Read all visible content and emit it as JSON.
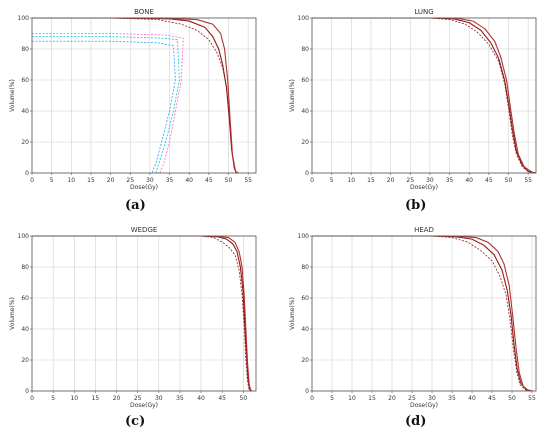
{
  "chart_data": [
    {
      "type": "line",
      "title": "BONE",
      "caption": "(a)",
      "xlabel": "Dose(Gy)",
      "ylabel": "Volume(%)",
      "xlim": [
        0,
        57
      ],
      "ylim": [
        0,
        100
      ],
      "xticks": [
        0,
        5,
        10,
        15,
        20,
        25,
        30,
        35,
        40,
        45,
        50,
        55
      ],
      "yticks": [
        0,
        20,
        40,
        60,
        80,
        100
      ],
      "grid": true,
      "series": [
        {
          "color": "#8b1a1a",
          "style": "solid",
          "points": [
            [
              0,
              100
            ],
            [
              20,
              100
            ],
            [
              35,
              99.5
            ],
            [
              40,
              98
            ],
            [
              44,
              94
            ],
            [
              46,
              88
            ],
            [
              47.5,
              80
            ],
            [
              48.5,
              70
            ],
            [
              49.5,
              55
            ],
            [
              50.2,
              35
            ],
            [
              50.8,
              15
            ],
            [
              51.5,
              3
            ],
            [
              52,
              0
            ]
          ]
        },
        {
          "color": "#8b1a1a",
          "style": "dashed",
          "points": [
            [
              0,
              100
            ],
            [
              20,
              100
            ],
            [
              32,
              99
            ],
            [
              38,
              96
            ],
            [
              42,
              92
            ],
            [
              45,
              86
            ],
            [
              47,
              78
            ],
            [
              48.5,
              68
            ],
            [
              49.5,
              55
            ],
            [
              50.3,
              35
            ],
            [
              51,
              12
            ],
            [
              51.8,
              1
            ],
            [
              52.5,
              0
            ]
          ]
        },
        {
          "color": "#b03030",
          "style": "solid",
          "points": [
            [
              0,
              100
            ],
            [
              20,
              100
            ],
            [
              35,
              99.8
            ],
            [
              42,
              99
            ],
            [
              46,
              96
            ],
            [
              48,
              90
            ],
            [
              49,
              80
            ],
            [
              49.8,
              60
            ],
            [
              50.4,
              35
            ],
            [
              51,
              12
            ],
            [
              51.8,
              1
            ],
            [
              52.5,
              0
            ]
          ]
        },
        {
          "color": "#00c8d8",
          "style": "dashed",
          "points": [
            [
              0,
              88
            ],
            [
              20,
              88
            ],
            [
              33,
              87
            ],
            [
              37,
              86
            ],
            [
              37.5,
              60
            ],
            [
              36,
              40
            ],
            [
              34,
              20
            ],
            [
              32.5,
              8
            ],
            [
              31.5,
              0
            ]
          ]
        },
        {
          "color": "#3399ff",
          "style": "dashed",
          "points": [
            [
              0,
              85
            ],
            [
              20,
              85
            ],
            [
              32,
              84
            ],
            [
              36,
              82
            ],
            [
              36.5,
              60
            ],
            [
              35,
              40
            ],
            [
              33,
              20
            ],
            [
              31.5,
              6
            ],
            [
              30.5,
              0
            ]
          ]
        },
        {
          "color": "#ff66cc",
          "style": "dashed",
          "points": [
            [
              0,
              90
            ],
            [
              20,
              90
            ],
            [
              34,
              89
            ],
            [
              38.5,
              87
            ],
            [
              38,
              60
            ],
            [
              36.5,
              40
            ],
            [
              35,
              20
            ],
            [
              33.5,
              6
            ],
            [
              32.5,
              0
            ]
          ]
        }
      ]
    },
    {
      "type": "line",
      "title": "LUNG",
      "caption": "(b)",
      "xlabel": "Dose(Gy)",
      "ylabel": "Volume(%)",
      "xlim": [
        0,
        57
      ],
      "ylim": [
        0,
        100
      ],
      "xticks": [
        0,
        5,
        10,
        15,
        20,
        25,
        30,
        35,
        40,
        45,
        50,
        55
      ],
      "yticks": [
        0,
        20,
        40,
        60,
        80,
        100
      ],
      "grid": true,
      "series": [
        {
          "color": "#8b1a1a",
          "style": "solid",
          "points": [
            [
              0,
              100
            ],
            [
              30,
              100
            ],
            [
              36,
              99.5
            ],
            [
              40,
              97
            ],
            [
              43,
              92
            ],
            [
              45.5,
              84
            ],
            [
              47.5,
              74
            ],
            [
              49,
              60
            ],
            [
              50,
              45
            ],
            [
              51,
              28
            ],
            [
              52,
              14
            ],
            [
              53.5,
              5
            ],
            [
              55,
              1
            ],
            [
              57,
              0
            ]
          ]
        },
        {
          "color": "#8b1a1a",
          "style": "dashed",
          "points": [
            [
              0,
              100
            ],
            [
              30,
              100
            ],
            [
              35,
              99
            ],
            [
              39,
              96
            ],
            [
              42,
              91
            ],
            [
              45,
              83
            ],
            [
              47.5,
              72
            ],
            [
              49,
              58
            ],
            [
              50,
              42
            ],
            [
              51,
              24
            ],
            [
              52,
              12
            ],
            [
              53.5,
              4
            ],
            [
              55,
              1
            ],
            [
              57,
              0
            ]
          ]
        },
        {
          "color": "#b03030",
          "style": "solid",
          "points": [
            [
              0,
              100
            ],
            [
              30,
              100
            ],
            [
              37,
              99.8
            ],
            [
              41,
              98
            ],
            [
              44,
              93
            ],
            [
              46.5,
              85
            ],
            [
              48,
              75
            ],
            [
              49.5,
              60
            ],
            [
              50.5,
              42
            ],
            [
              51.5,
              25
            ],
            [
              52.5,
              12
            ],
            [
              54,
              4
            ],
            [
              56,
              0.5
            ],
            [
              57,
              0
            ]
          ]
        }
      ]
    },
    {
      "type": "line",
      "title": "WEDGE",
      "caption": "(c)",
      "xlabel": "Dose(Gy)",
      "ylabel": "Volume(%)",
      "xlim": [
        0,
        53
      ],
      "ylim": [
        0,
        100
      ],
      "xticks": [
        0,
        5,
        10,
        15,
        20,
        25,
        30,
        35,
        40,
        45,
        50
      ],
      "yticks": [
        0,
        20,
        40,
        60,
        80,
        100
      ],
      "grid": true,
      "series": [
        {
          "color": "#8b1a1a",
          "style": "solid",
          "points": [
            [
              0,
              100
            ],
            [
              40,
              100
            ],
            [
              44,
              99.5
            ],
            [
              46,
              98
            ],
            [
              47.5,
              95
            ],
            [
              48.5,
              90
            ],
            [
              49.3,
              80
            ],
            [
              49.9,
              65
            ],
            [
              50.3,
              45
            ],
            [
              50.7,
              25
            ],
            [
              51.1,
              8
            ],
            [
              51.5,
              1
            ],
            [
              52,
              0
            ]
          ]
        },
        {
          "color": "#8b1a1a",
          "style": "dashed",
          "points": [
            [
              0,
              100
            ],
            [
              40,
              100
            ],
            [
              43,
              99
            ],
            [
              45,
              96
            ],
            [
              46.5,
              93
            ],
            [
              48,
              88
            ],
            [
              49,
              78
            ],
            [
              49.7,
              62
            ],
            [
              50.2,
              42
            ],
            [
              50.6,
              20
            ],
            [
              51,
              6
            ],
            [
              51.4,
              0.5
            ],
            [
              52,
              0
            ]
          ]
        },
        {
          "color": "#b03030",
          "style": "solid",
          "points": [
            [
              0,
              100
            ],
            [
              40,
              100
            ],
            [
              44,
              99.8
            ],
            [
              46.5,
              99
            ],
            [
              48,
              96
            ],
            [
              49,
              90
            ],
            [
              49.7,
              80
            ],
            [
              50.2,
              62
            ],
            [
              50.6,
              40
            ],
            [
              51,
              18
            ],
            [
              51.4,
              4
            ],
            [
              51.8,
              0
            ]
          ]
        }
      ]
    },
    {
      "type": "line",
      "title": "HEAD",
      "caption": "(d)",
      "xlabel": "Dose(Gy)",
      "ylabel": "Volume(%)",
      "xlim": [
        0,
        56
      ],
      "ylim": [
        0,
        100
      ],
      "xticks": [
        0,
        5,
        10,
        15,
        20,
        25,
        30,
        35,
        40,
        45,
        50,
        55
      ],
      "yticks": [
        0,
        20,
        40,
        60,
        80,
        100
      ],
      "grid": true,
      "series": [
        {
          "color": "#8b1a1a",
          "style": "solid",
          "points": [
            [
              0,
              100
            ],
            [
              30,
              100
            ],
            [
              36,
              99.5
            ],
            [
              40,
              98
            ],
            [
              43,
              94
            ],
            [
              45.5,
              88
            ],
            [
              47.5,
              78
            ],
            [
              48.8,
              65
            ],
            [
              49.8,
              48
            ],
            [
              50.5,
              30
            ],
            [
              51.3,
              14
            ],
            [
              52.2,
              5
            ],
            [
              53.5,
              1
            ],
            [
              55,
              0
            ]
          ]
        },
        {
          "color": "#8b1a1a",
          "style": "dashed",
          "points": [
            [
              0,
              100
            ],
            [
              30,
              100
            ],
            [
              35,
              99
            ],
            [
              39,
              96
            ],
            [
              42,
              91
            ],
            [
              45,
              84
            ],
            [
              47,
              74
            ],
            [
              48.5,
              62
            ],
            [
              49.5,
              46
            ],
            [
              50.3,
              28
            ],
            [
              51.2,
              12
            ],
            [
              52,
              4
            ],
            [
              53.5,
              0.5
            ],
            [
              55,
              0
            ]
          ]
        },
        {
          "color": "#b03030",
          "style": "solid",
          "points": [
            [
              0,
              100
            ],
            [
              30,
              100
            ],
            [
              37,
              99.8
            ],
            [
              41,
              99
            ],
            [
              44,
              96
            ],
            [
              46.5,
              90
            ],
            [
              48,
              82
            ],
            [
              49.3,
              68
            ],
            [
              50.2,
              48
            ],
            [
              51,
              28
            ],
            [
              51.8,
              12
            ],
            [
              52.8,
              3
            ],
            [
              54,
              0.5
            ],
            [
              55,
              0
            ]
          ]
        }
      ]
    }
  ]
}
